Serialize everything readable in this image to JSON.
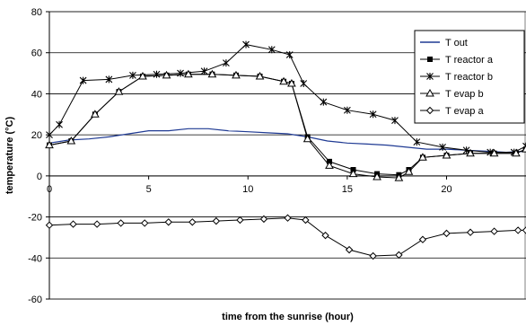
{
  "chart_data": {
    "type": "line",
    "title": "",
    "xlabel": "time from the sunrise (hour)",
    "ylabel": "temperature (°C)",
    "xlim": [
      0,
      24
    ],
    "ylim": [
      -60,
      80
    ],
    "xticks": [
      0,
      5,
      10,
      15,
      20
    ],
    "yticks": [
      -60,
      -40,
      -20,
      0,
      20,
      40,
      60,
      80
    ],
    "grid": "horizontal",
    "legend": "top-right",
    "series": [
      {
        "name": "T out",
        "color": "#1f3a93",
        "marker": "none",
        "x": [
          0,
          1,
          2,
          3,
          4,
          5,
          6,
          7,
          8,
          9,
          10,
          11,
          12,
          13,
          14,
          15,
          16,
          17,
          18,
          19,
          20,
          21,
          22,
          23,
          24
        ],
        "y": [
          16,
          17.5,
          18,
          19,
          20.5,
          22,
          22,
          23,
          23,
          22,
          21.5,
          21,
          20.5,
          19,
          17,
          16,
          15.5,
          15,
          14,
          13,
          13,
          12.5,
          12,
          11.5,
          12
        ]
      },
      {
        "name": "T reactor a",
        "color": "#000000",
        "marker": "square",
        "x": [
          0,
          1.1,
          2.3,
          3.5,
          4.7,
          5.9,
          7.0,
          8.2,
          9.4,
          10.6,
          11.8,
          12.2,
          13.0,
          14.1,
          15.3,
          16.5,
          17.6,
          18.1,
          18.8,
          20.0,
          21.2,
          22.4,
          23.5,
          24
        ],
        "y": [
          15,
          17,
          30,
          41,
          48.5,
          49,
          49.5,
          49.5,
          49,
          48.5,
          46,
          45,
          19,
          7,
          3,
          1,
          0.5,
          3,
          9,
          10,
          11,
          11,
          11,
          13
        ]
      },
      {
        "name": "T reactor b",
        "color": "#000000",
        "marker": "star",
        "x": [
          0,
          0.5,
          1.7,
          3.0,
          4.2,
          5.4,
          6.6,
          7.8,
          8.9,
          9.9,
          11.2,
          12.1,
          12.8,
          13.8,
          15.0,
          16.3,
          17.4,
          18.5,
          19.8,
          21.0,
          22.2,
          23.4,
          24
        ],
        "y": [
          20,
          25,
          46.5,
          47,
          49,
          49.5,
          50,
          51,
          55,
          64,
          61.5,
          59,
          45,
          36,
          32,
          30,
          27,
          16.5,
          14,
          12.5,
          11.5,
          11.5,
          14.5
        ]
      },
      {
        "name": "T evap b",
        "color": "#000000",
        "marker": "triangle",
        "x": [
          0,
          1.1,
          2.3,
          3.5,
          4.7,
          5.9,
          7.0,
          8.2,
          9.4,
          10.6,
          11.8,
          12.2,
          13.0,
          14.1,
          15.3,
          16.5,
          17.6,
          18.1,
          18.8,
          20.0,
          21.2,
          22.4,
          23.5,
          24
        ],
        "y": [
          15,
          17,
          30,
          41,
          48.5,
          49,
          49.5,
          49.5,
          49,
          48.5,
          46,
          45,
          18,
          5,
          1,
          -0.5,
          -1,
          2,
          9,
          10,
          11,
          11,
          11,
          13
        ]
      },
      {
        "name": "T evap a",
        "color": "#000000",
        "marker": "diamond",
        "x": [
          0,
          1.2,
          2.4,
          3.6,
          4.8,
          6.0,
          7.2,
          8.4,
          9.6,
          10.8,
          12.0,
          12.9,
          13.9,
          15.1,
          16.3,
          17.6,
          18.8,
          20.0,
          21.2,
          22.4,
          23.6,
          24
        ],
        "y": [
          -24,
          -23.5,
          -23.5,
          -23,
          -23,
          -22.5,
          -22.5,
          -22,
          -21.5,
          -21,
          -20.5,
          -21.5,
          -29,
          -36,
          -39,
          -38.5,
          -31,
          -28,
          -27.5,
          -27,
          -26.5,
          -26.5
        ]
      }
    ]
  }
}
